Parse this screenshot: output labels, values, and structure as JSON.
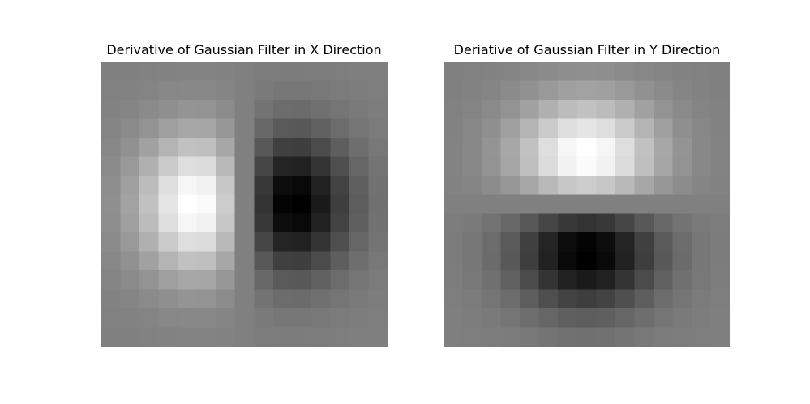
{
  "chart_data": [
    {
      "type": "heatmap",
      "title": "Derivative of Gaussian Filter in X Direction",
      "colormap": "gray",
      "vmin": -1,
      "vmax": 1,
      "rows": 15,
      "cols": 15,
      "kernel": "gaussian_derivative_x",
      "sigma": 2.6
    },
    {
      "type": "heatmap",
      "title": "Deriative of Gaussian Filter in Y Direction",
      "colormap": "gray",
      "vmin": -1,
      "vmax": 1,
      "rows": 15,
      "cols": 15,
      "kernel": "gaussian_derivative_y",
      "sigma": 2.6
    }
  ]
}
